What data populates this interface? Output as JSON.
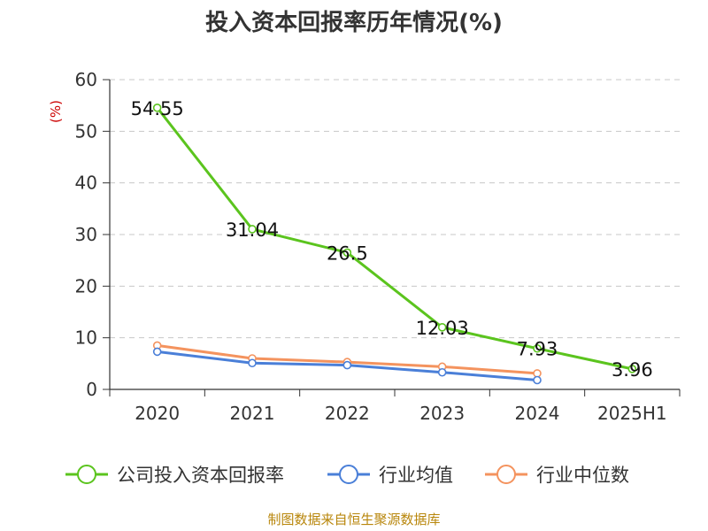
{
  "chart_data": {
    "type": "line",
    "title": "投入资本回报率历年情况(%)",
    "ylabel": "(%)",
    "categories": [
      "2020",
      "2021",
      "2022",
      "2023",
      "2024",
      "2025H1"
    ],
    "ylim": [
      0,
      60
    ],
    "yticks": [
      0,
      10,
      20,
      30,
      40,
      50,
      60
    ],
    "grid": true,
    "legend_position": "bottom",
    "series": [
      {
        "name": "公司投入资本回报率",
        "color": "#5bc41e",
        "values": [
          54.55,
          31.04,
          26.5,
          12.03,
          7.93,
          3.96
        ],
        "labels": [
          "54.55",
          "31.04",
          "26.5",
          "12.03",
          "7.93",
          "3.96"
        ]
      },
      {
        "name": "行业均值",
        "color": "#4a7fd8",
        "values": [
          7.3,
          5.1,
          4.7,
          3.3,
          1.8,
          null
        ]
      },
      {
        "name": "行业中位数",
        "color": "#f4935e",
        "values": [
          8.5,
          6.0,
          5.3,
          4.4,
          3.1,
          null
        ]
      }
    ]
  },
  "footer": {
    "source": "制图数据来自恒生聚源数据库"
  }
}
